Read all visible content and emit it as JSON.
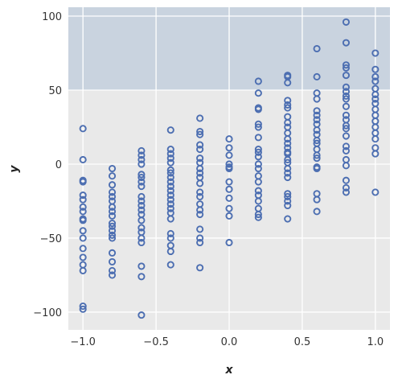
{
  "chart_data": {
    "type": "scatter",
    "title": "",
    "xlabel": "x",
    "ylabel": "y",
    "xlim": [
      -1.1,
      1.1
    ],
    "ylim": [
      -112,
      106
    ],
    "x_ticks": [
      -1.0,
      -0.5,
      0.0,
      0.5,
      1.0
    ],
    "x_tick_labels": [
      "−1.0",
      "−0.5",
      "0.0",
      "0.5",
      "1.0"
    ],
    "y_ticks": [
      -100,
      -50,
      0,
      50,
      100
    ],
    "y_tick_labels": [
      "−100",
      "−50",
      "0",
      "50",
      "100"
    ],
    "grid": true,
    "shaded_band": {
      "y_from": 50,
      "y_to": 106,
      "color": "#c9d3df"
    },
    "background_color": "#e9e9e9",
    "marker": {
      "shape": "open-circle",
      "color": "#4c6eb1"
    },
    "series": [
      {
        "points": [
          [
            -1.0,
            24
          ],
          [
            -1.0,
            3
          ],
          [
            -1.0,
            -11
          ],
          [
            -1.0,
            -12
          ],
          [
            -1.0,
            -21
          ],
          [
            -1.0,
            -24
          ],
          [
            -1.0,
            -29
          ],
          [
            -1.0,
            -32
          ],
          [
            -1.0,
            -37
          ],
          [
            -1.0,
            -38
          ],
          [
            -1.0,
            -45
          ],
          [
            -1.0,
            -50
          ],
          [
            -1.0,
            -57
          ],
          [
            -1.0,
            -63
          ],
          [
            -1.0,
            -68
          ],
          [
            -1.0,
            -72
          ],
          [
            -1.0,
            -96
          ],
          [
            -1.0,
            -98
          ],
          [
            -0.8,
            -3
          ],
          [
            -0.8,
            -8
          ],
          [
            -0.8,
            -14
          ],
          [
            -0.8,
            -19
          ],
          [
            -0.8,
            -22
          ],
          [
            -0.8,
            -25
          ],
          [
            -0.8,
            -29
          ],
          [
            -0.8,
            -32
          ],
          [
            -0.8,
            -35
          ],
          [
            -0.8,
            -40
          ],
          [
            -0.8,
            -42
          ],
          [
            -0.8,
            -45
          ],
          [
            -0.8,
            -48
          ],
          [
            -0.8,
            -50
          ],
          [
            -0.8,
            -60
          ],
          [
            -0.8,
            -66
          ],
          [
            -0.8,
            -72
          ],
          [
            -0.8,
            -75
          ],
          [
            -0.6,
            9
          ],
          [
            -0.6,
            6
          ],
          [
            -0.6,
            3
          ],
          [
            -0.6,
            0
          ],
          [
            -0.6,
            -7
          ],
          [
            -0.6,
            -9
          ],
          [
            -0.6,
            -12
          ],
          [
            -0.6,
            -15
          ],
          [
            -0.6,
            -22
          ],
          [
            -0.6,
            -25
          ],
          [
            -0.6,
            -28
          ],
          [
            -0.6,
            -31
          ],
          [
            -0.6,
            -34
          ],
          [
            -0.6,
            -38
          ],
          [
            -0.6,
            -43
          ],
          [
            -0.6,
            -46
          ],
          [
            -0.6,
            -50
          ],
          [
            -0.6,
            -53
          ],
          [
            -0.6,
            -69
          ],
          [
            -0.6,
            -76
          ],
          [
            -0.6,
            -102
          ],
          [
            -0.4,
            23
          ],
          [
            -0.4,
            10
          ],
          [
            -0.4,
            7
          ],
          [
            -0.4,
            4
          ],
          [
            -0.4,
            1
          ],
          [
            -0.4,
            -4
          ],
          [
            -0.4,
            -6
          ],
          [
            -0.4,
            -9
          ],
          [
            -0.4,
            -12
          ],
          [
            -0.4,
            -15
          ],
          [
            -0.4,
            -18
          ],
          [
            -0.4,
            -21
          ],
          [
            -0.4,
            -24
          ],
          [
            -0.4,
            -27
          ],
          [
            -0.4,
            -30
          ],
          [
            -0.4,
            -33
          ],
          [
            -0.4,
            -37
          ],
          [
            -0.4,
            -47
          ],
          [
            -0.4,
            -50
          ],
          [
            -0.4,
            -55
          ],
          [
            -0.4,
            -59
          ],
          [
            -0.4,
            -68
          ],
          [
            -0.2,
            31
          ],
          [
            -0.2,
            22
          ],
          [
            -0.2,
            20
          ],
          [
            -0.2,
            13
          ],
          [
            -0.2,
            10
          ],
          [
            -0.2,
            4
          ],
          [
            -0.2,
            1
          ],
          [
            -0.2,
            -3
          ],
          [
            -0.2,
            -6
          ],
          [
            -0.2,
            -9
          ],
          [
            -0.2,
            -13
          ],
          [
            -0.2,
            -19
          ],
          [
            -0.2,
            -22
          ],
          [
            -0.2,
            -27
          ],
          [
            -0.2,
            -31
          ],
          [
            -0.2,
            -34
          ],
          [
            -0.2,
            -44
          ],
          [
            -0.2,
            -50
          ],
          [
            -0.2,
            -53
          ],
          [
            -0.2,
            -70
          ],
          [
            0.0,
            17
          ],
          [
            0.0,
            11
          ],
          [
            0.0,
            6
          ],
          [
            0.0,
            0
          ],
          [
            0.0,
            -2
          ],
          [
            0.0,
            -3
          ],
          [
            0.0,
            -12
          ],
          [
            0.0,
            -17
          ],
          [
            0.0,
            -23
          ],
          [
            0.0,
            -30
          ],
          [
            0.0,
            -35
          ],
          [
            0.0,
            -53
          ],
          [
            0.2,
            56
          ],
          [
            0.2,
            48
          ],
          [
            0.2,
            38
          ],
          [
            0.2,
            37
          ],
          [
            0.2,
            27
          ],
          [
            0.2,
            25
          ],
          [
            0.2,
            18
          ],
          [
            0.2,
            10
          ],
          [
            0.2,
            8
          ],
          [
            0.2,
            5
          ],
          [
            0.2,
            0
          ],
          [
            0.2,
            -3
          ],
          [
            0.2,
            -8
          ],
          [
            0.2,
            -12
          ],
          [
            0.2,
            -18
          ],
          [
            0.2,
            -21
          ],
          [
            0.2,
            -25
          ],
          [
            0.2,
            -30
          ],
          [
            0.2,
            -34
          ],
          [
            0.2,
            -36
          ],
          [
            0.4,
            60
          ],
          [
            0.4,
            59
          ],
          [
            0.4,
            55
          ],
          [
            0.4,
            43
          ],
          [
            0.4,
            40
          ],
          [
            0.4,
            38
          ],
          [
            0.4,
            32
          ],
          [
            0.4,
            28
          ],
          [
            0.4,
            25
          ],
          [
            0.4,
            21
          ],
          [
            0.4,
            17
          ],
          [
            0.4,
            14
          ],
          [
            0.4,
            11
          ],
          [
            0.4,
            8
          ],
          [
            0.4,
            7
          ],
          [
            0.4,
            3
          ],
          [
            0.4,
            1
          ],
          [
            0.4,
            -3
          ],
          [
            0.4,
            -6
          ],
          [
            0.4,
            -9
          ],
          [
            0.4,
            -20
          ],
          [
            0.4,
            -22
          ],
          [
            0.4,
            -25
          ],
          [
            0.4,
            -28
          ],
          [
            0.4,
            -37
          ],
          [
            0.6,
            78
          ],
          [
            0.6,
            59
          ],
          [
            0.6,
            48
          ],
          [
            0.6,
            44
          ],
          [
            0.6,
            36
          ],
          [
            0.6,
            33
          ],
          [
            0.6,
            30
          ],
          [
            0.6,
            27
          ],
          [
            0.6,
            23
          ],
          [
            0.6,
            20
          ],
          [
            0.6,
            16
          ],
          [
            0.6,
            14
          ],
          [
            0.6,
            10
          ],
          [
            0.6,
            6
          ],
          [
            0.6,
            4
          ],
          [
            0.6,
            -2
          ],
          [
            0.6,
            -3
          ],
          [
            0.6,
            -20
          ],
          [
            0.6,
            -24
          ],
          [
            0.6,
            -32
          ],
          [
            0.8,
            96
          ],
          [
            0.8,
            82
          ],
          [
            0.8,
            67
          ],
          [
            0.8,
            65
          ],
          [
            0.8,
            60
          ],
          [
            0.8,
            52
          ],
          [
            0.8,
            49
          ],
          [
            0.8,
            46
          ],
          [
            0.8,
            44
          ],
          [
            0.8,
            39
          ],
          [
            0.8,
            33
          ],
          [
            0.8,
            30
          ],
          [
            0.8,
            26
          ],
          [
            0.8,
            24
          ],
          [
            0.8,
            19
          ],
          [
            0.8,
            12
          ],
          [
            0.8,
            9
          ],
          [
            0.8,
            3
          ],
          [
            0.8,
            -1
          ],
          [
            0.8,
            -11
          ],
          [
            0.8,
            -16
          ],
          [
            0.8,
            -19
          ],
          [
            1.0,
            75
          ],
          [
            1.0,
            64
          ],
          [
            1.0,
            59
          ],
          [
            1.0,
            56
          ],
          [
            1.0,
            51
          ],
          [
            1.0,
            47
          ],
          [
            1.0,
            44
          ],
          [
            1.0,
            41
          ],
          [
            1.0,
            37
          ],
          [
            1.0,
            33
          ],
          [
            1.0,
            29
          ],
          [
            1.0,
            25
          ],
          [
            1.0,
            21
          ],
          [
            1.0,
            17
          ],
          [
            1.0,
            11
          ],
          [
            1.0,
            7
          ],
          [
            1.0,
            -19
          ]
        ]
      }
    ]
  }
}
